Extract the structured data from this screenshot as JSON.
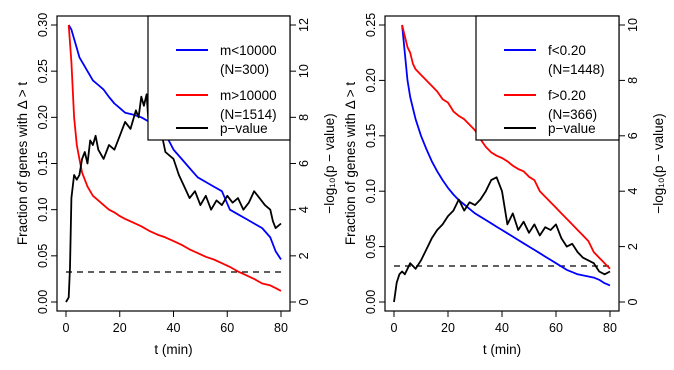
{
  "chart_data": [
    {
      "type": "line",
      "xlabel": "t (min)",
      "ylabel": "Fraction of genes with Δ > t",
      "y2label": "−log₁₀(p − value)",
      "xlim": [
        0,
        80
      ],
      "ylim": [
        0,
        0.3
      ],
      "y2lim": [
        0,
        12
      ],
      "xticks": [
        "0",
        "20",
        "40",
        "60",
        "80"
      ],
      "yticks": [
        "0.00",
        "0.05",
        "0.10",
        "0.15",
        "0.20",
        "0.25",
        "0.30"
      ],
      "y2ticks": [
        "0",
        "2",
        "4",
        "6",
        "8",
        "10",
        "12"
      ],
      "legend_position": "top-right",
      "series": [
        {
          "name": "m<10000",
          "name2": "(N=300)",
          "color": "#0000ff",
          "axis": "left",
          "x": [
            1,
            2,
            3,
            4,
            5,
            6,
            8,
            10,
            12,
            14,
            16,
            18,
            20,
            22,
            25,
            28,
            31,
            34,
            37,
            40,
            43,
            46,
            49,
            52,
            55,
            58,
            61,
            64,
            67,
            70,
            73,
            76,
            78,
            80
          ],
          "y": [
            0.3,
            0.295,
            0.285,
            0.275,
            0.265,
            0.26,
            0.25,
            0.24,
            0.235,
            0.23,
            0.222,
            0.215,
            0.21,
            0.205,
            0.203,
            0.2,
            0.195,
            0.19,
            0.182,
            0.165,
            0.155,
            0.145,
            0.135,
            0.13,
            0.125,
            0.12,
            0.1,
            0.095,
            0.09,
            0.085,
            0.08,
            0.07,
            0.055,
            0.046
          ]
        },
        {
          "name": "m>10000",
          "name2": "(N=1514)",
          "color": "#ff0000",
          "axis": "left",
          "x": [
            1,
            2,
            3,
            4,
            5,
            6,
            8,
            10,
            12,
            14,
            16,
            18,
            20,
            22,
            25,
            28,
            31,
            34,
            37,
            40,
            43,
            46,
            49,
            52,
            55,
            58,
            61,
            64,
            67,
            70,
            73,
            76,
            78,
            80
          ],
          "y": [
            0.3,
            0.26,
            0.2,
            0.17,
            0.155,
            0.14,
            0.125,
            0.115,
            0.11,
            0.105,
            0.1,
            0.097,
            0.093,
            0.09,
            0.086,
            0.082,
            0.077,
            0.073,
            0.07,
            0.066,
            0.062,
            0.057,
            0.053,
            0.049,
            0.046,
            0.042,
            0.038,
            0.033,
            0.029,
            0.025,
            0.02,
            0.018,
            0.015,
            0.012
          ]
        },
        {
          "name": "p−value",
          "color": "#000000",
          "axis": "right",
          "x": [
            0,
            1,
            1.5,
            2,
            3,
            4,
            5,
            6,
            7,
            8,
            9,
            10,
            11,
            12,
            14,
            16,
            18,
            20,
            22,
            24,
            26,
            27,
            28,
            29,
            30,
            31,
            32,
            33,
            35,
            37,
            40,
            42,
            44,
            46,
            48,
            50,
            52,
            54,
            56,
            58,
            60,
            62,
            64,
            66,
            68,
            70,
            72,
            74,
            76,
            77,
            78,
            80
          ],
          "y": [
            0.0,
            0.2,
            1.5,
            4.5,
            5.5,
            5.3,
            5.5,
            6.2,
            6.5,
            6.0,
            7.0,
            6.8,
            7.2,
            6.6,
            6.2,
            6.8,
            6.6,
            7.2,
            7.8,
            7.5,
            8.3,
            8.0,
            8.9,
            8.5,
            9.0,
            7.3,
            7.8,
            7.2,
            7.6,
            6.5,
            6.2,
            5.5,
            5.0,
            4.5,
            4.8,
            4.2,
            4.6,
            4.0,
            4.4,
            4.2,
            4.6,
            4.3,
            4.5,
            4.0,
            4.3,
            4.8,
            4.5,
            4.2,
            4.0,
            3.5,
            3.2,
            3.4
          ]
        }
      ],
      "reference_line": {
        "axis": "right",
        "value": 1.3,
        "style": "dashed"
      }
    },
    {
      "type": "line",
      "xlabel": "t (min)",
      "ylabel": "Fraction of genes with Δ > t",
      "y2label": "−log₁₀(p − value)",
      "xlim": [
        0,
        80
      ],
      "ylim": [
        0,
        0.25
      ],
      "y2lim": [
        0,
        10
      ],
      "xticks": [
        "0",
        "20",
        "40",
        "60",
        "80"
      ],
      "yticks": [
        "0.00",
        "0.05",
        "0.10",
        "0.15",
        "0.20",
        "0.25"
      ],
      "y2ticks": [
        "0",
        "2",
        "4",
        "6",
        "8",
        "10"
      ],
      "legend_position": "top-right",
      "series": [
        {
          "name": "f<0.20",
          "name2": "(N=1448)",
          "color": "#0000ff",
          "axis": "left",
          "x": [
            3,
            4,
            5,
            6,
            7,
            8,
            10,
            12,
            14,
            16,
            18,
            20,
            22,
            24,
            26,
            28,
            30,
            32,
            34,
            36,
            38,
            40,
            42,
            44,
            46,
            48,
            50,
            52,
            54,
            56,
            58,
            60,
            62,
            64,
            66,
            68,
            70,
            72,
            74,
            76,
            78,
            80
          ],
          "y": [
            0.25,
            0.225,
            0.2,
            0.185,
            0.175,
            0.165,
            0.15,
            0.138,
            0.127,
            0.118,
            0.11,
            0.103,
            0.097,
            0.092,
            0.088,
            0.084,
            0.08,
            0.077,
            0.074,
            0.071,
            0.068,
            0.065,
            0.062,
            0.059,
            0.056,
            0.053,
            0.05,
            0.047,
            0.044,
            0.041,
            0.038,
            0.035,
            0.032,
            0.029,
            0.027,
            0.025,
            0.024,
            0.023,
            0.022,
            0.02,
            0.017,
            0.015
          ]
        },
        {
          "name": "f>0.20",
          "name2": "(N=366)",
          "color": "#ff0000",
          "axis": "left",
          "x": [
            3,
            4,
            5,
            6,
            7,
            8,
            10,
            12,
            14,
            16,
            18,
            20,
            22,
            24,
            26,
            28,
            30,
            32,
            34,
            36,
            38,
            40,
            42,
            44,
            46,
            48,
            50,
            52,
            54,
            56,
            58,
            60,
            62,
            64,
            66,
            68,
            70,
            72,
            74,
            76,
            78,
            80
          ],
          "y": [
            0.25,
            0.24,
            0.23,
            0.225,
            0.215,
            0.21,
            0.205,
            0.2,
            0.195,
            0.19,
            0.183,
            0.18,
            0.172,
            0.168,
            0.165,
            0.16,
            0.155,
            0.147,
            0.14,
            0.135,
            0.132,
            0.13,
            0.127,
            0.123,
            0.12,
            0.118,
            0.113,
            0.11,
            0.1,
            0.095,
            0.09,
            0.085,
            0.08,
            0.075,
            0.07,
            0.065,
            0.06,
            0.055,
            0.045,
            0.04,
            0.035,
            0.03
          ]
        },
        {
          "name": "p−value",
          "color": "#000000",
          "axis": "right",
          "x": [
            0,
            1,
            2,
            3,
            4,
            5,
            6,
            8,
            10,
            12,
            14,
            16,
            18,
            20,
            22,
            24,
            26,
            28,
            30,
            32,
            34,
            36,
            38,
            40,
            42,
            44,
            46,
            48,
            50,
            52,
            54,
            56,
            58,
            60,
            62,
            64,
            66,
            68,
            70,
            72,
            74,
            76,
            78,
            80
          ],
          "y": [
            0.0,
            0.7,
            1.0,
            1.1,
            1.0,
            1.2,
            1.4,
            1.2,
            1.5,
            1.9,
            2.3,
            2.6,
            2.8,
            3.1,
            3.3,
            3.7,
            3.3,
            3.6,
            3.5,
            3.7,
            4.0,
            4.4,
            4.5,
            4.0,
            2.8,
            3.2,
            2.6,
            2.9,
            2.5,
            2.8,
            2.4,
            2.7,
            2.6,
            2.8,
            2.3,
            2.0,
            2.1,
            1.8,
            1.6,
            1.5,
            1.4,
            1.1,
            1.0,
            1.1
          ]
        }
      ],
      "reference_line": {
        "axis": "right",
        "value": 1.3,
        "style": "dashed"
      }
    }
  ]
}
